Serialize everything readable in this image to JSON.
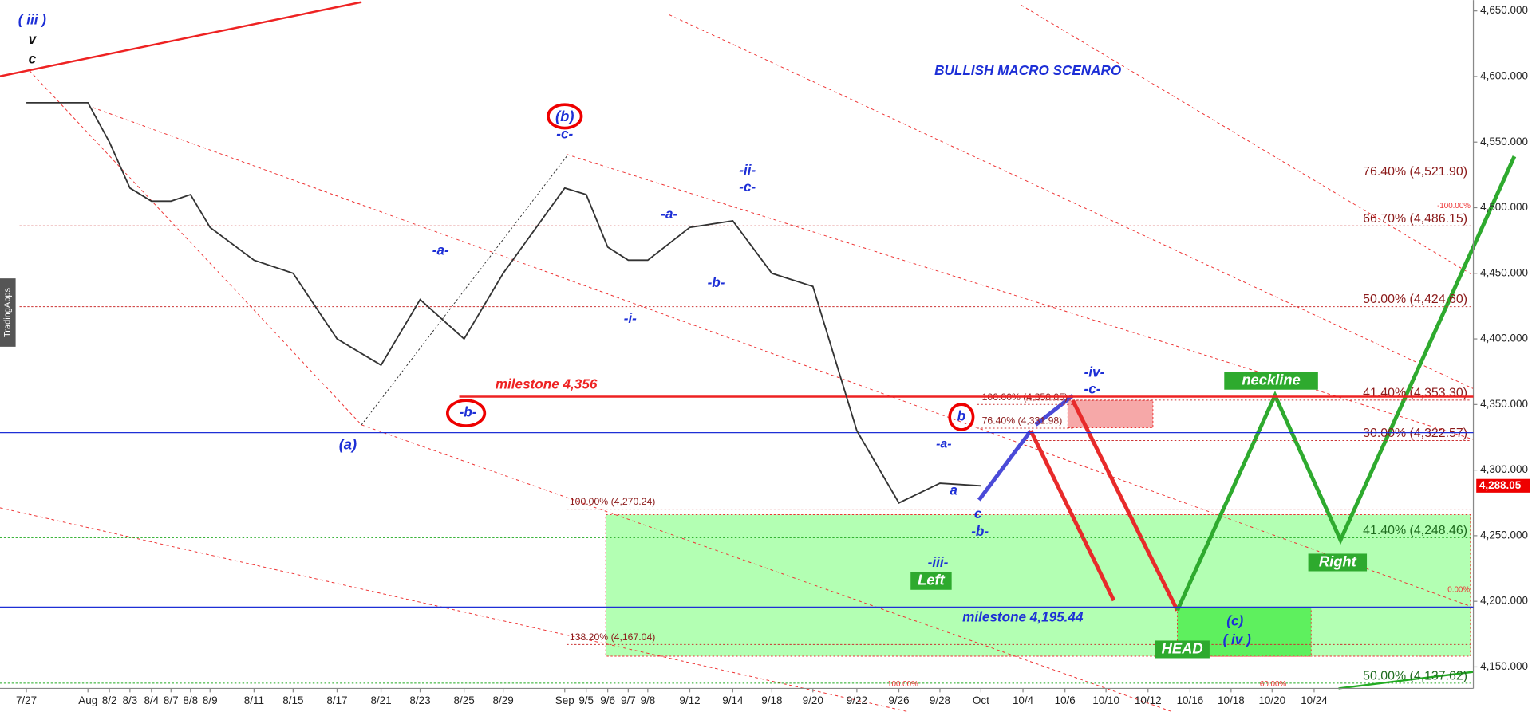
{
  "chart_data": {
    "type": "line",
    "x": [
      "7/27",
      "Aug",
      "8/2",
      "8/3",
      "8/4",
      "8/7",
      "8/8",
      "8/9",
      "8/11",
      "8/15",
      "8/17",
      "8/21",
      "8/23",
      "8/25",
      "8/29",
      "Sep",
      "9/5",
      "9/6",
      "9/7",
      "9/8",
      "9/12",
      "9/14",
      "9/18",
      "9/20",
      "9/22",
      "9/26",
      "9/28",
      "Oct",
      "10/4",
      "10/6",
      "10/10",
      "10/12",
      "10/16",
      "10/18",
      "10/20",
      "10/24"
    ],
    "series": [
      {
        "name": "Price",
        "color": "#333333",
        "values": [
          4580,
          4580,
          4550,
          4515,
          4505,
          4505,
          4510,
          4485,
          4460,
          4450,
          4400,
          4380,
          4430,
          4400,
          4450,
          4515,
          4510,
          4470,
          4460,
          4460,
          4485,
          4490,
          4450,
          4440,
          4330,
          4275,
          4290,
          4288.05,
          null,
          null,
          null,
          null,
          null,
          null,
          null,
          null
        ]
      }
    ],
    "ylim": [
      4133.6,
      4658.2
    ],
    "yticks": [
      {
        "value": 4150,
        "label": "4,150.000"
      },
      {
        "value": 4200,
        "label": "4,200.000"
      },
      {
        "value": 4250,
        "label": "4,250.000"
      },
      {
        "value": 4300,
        "label": "4,300.000"
      },
      {
        "value": 4350,
        "label": "4,350.000"
      },
      {
        "value": 4400,
        "label": "4,400.000"
      },
      {
        "value": 4450,
        "label": "4,450.000"
      },
      {
        "value": 4500,
        "label": "4,500.000"
      },
      {
        "value": 4550,
        "label": "4,550.000"
      },
      {
        "value": 4600,
        "label": "4,600.000"
      },
      {
        "value": 4650,
        "label": "4,650.000"
      }
    ],
    "last_price": {
      "value": 4288.05,
      "label": "4,288.05"
    },
    "levels": [
      {
        "value": 4521.9,
        "label": "76.40% (4,521.90)"
      },
      {
        "value": 4486.15,
        "label": "66.70% (4,486.15)"
      },
      {
        "value": 4424.6,
        "label": "50.00% (4,424.60)"
      },
      {
        "value": 4353.3,
        "label": "41.40% (4,353.30)"
      },
      {
        "value": 4322.57,
        "label": "30.00% (4,322.57)"
      },
      {
        "value": 4248.46,
        "label": "41.40% (4,248.46)"
      },
      {
        "value": 4137.62,
        "label": "50.00% (4,137.62)"
      },
      {
        "value": 4270.24,
        "label": "100.00% (4,270.24)"
      },
      {
        "value": 4167.04,
        "label": "138.20% (4,167.04)"
      },
      {
        "value": 4350.05,
        "label": "100.00% (4,350.05)"
      },
      {
        "value": 4331.98,
        "label": "76.40% (4,331.98)"
      }
    ],
    "milestones": [
      {
        "value": 4356,
        "label": "milestone 4,356"
      },
      {
        "value": 4195.44,
        "label": "milestone 4,195.44"
      }
    ],
    "annotations": [
      "( iii )",
      "v",
      "c",
      "(b)",
      "-c-",
      "-ii-",
      "-c-",
      "-a-",
      "-b-",
      "-i-",
      "-a-",
      "-b-",
      "(a)",
      "-iv-",
      "-c-",
      "b",
      "-a-",
      "a",
      "c",
      "-b-",
      "-iii-",
      "Left",
      "HEAD",
      "(c)",
      "( iv )",
      "neckline",
      "Right",
      "BULLISH MACRO SCENARO",
      "TradingApps",
      "-100.00%",
      "0.00%",
      "100.00%",
      "60.00%"
    ]
  }
}
